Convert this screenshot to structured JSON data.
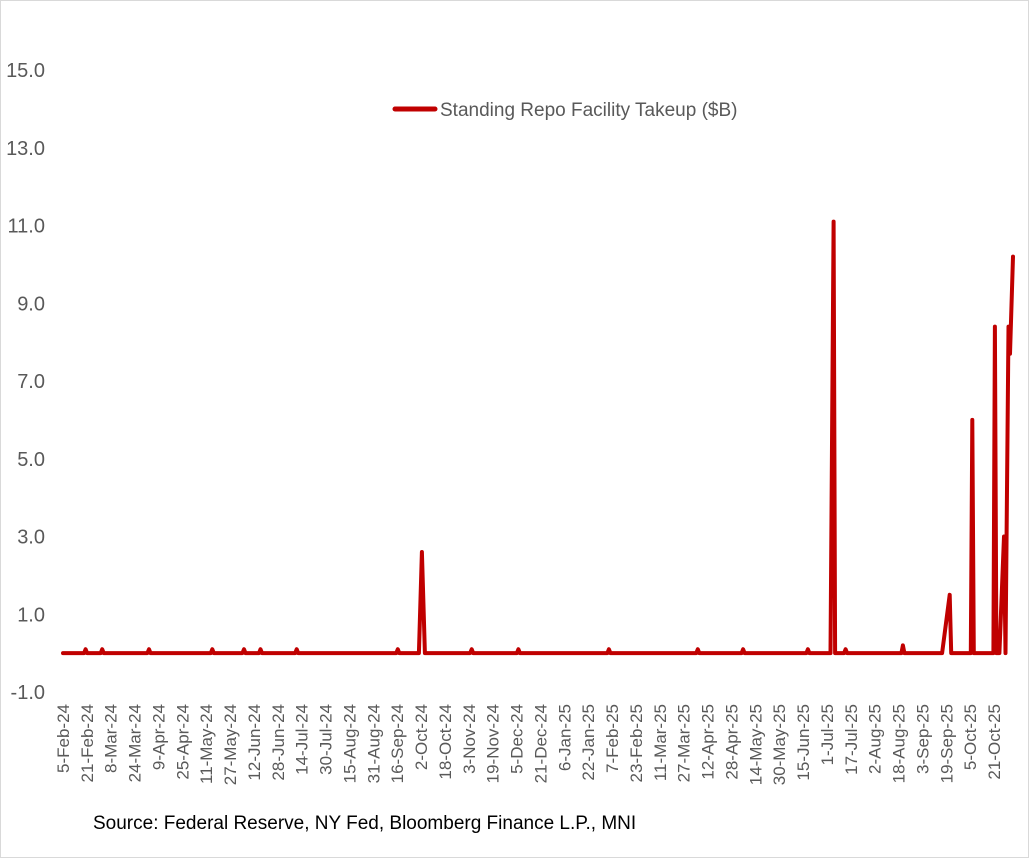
{
  "chart_data": {
    "type": "line",
    "title": "",
    "xlabel": "",
    "ylabel": "",
    "ylim": [
      -1.0,
      17.0
    ],
    "y_ticks": [
      "-1.0",
      "1.0",
      "3.0",
      "5.0",
      "7.0",
      "9.0",
      "11.0",
      "13.0",
      "15.0"
    ],
    "y_tick_values": [
      -1,
      1,
      3,
      5,
      7,
      9,
      11,
      13,
      15
    ],
    "x_tick_labels": [
      "5-Feb-24",
      "21-Feb-24",
      "8-Mar-24",
      "24-Mar-24",
      "9-Apr-24",
      "25-Apr-24",
      "11-May-24",
      "27-May-24",
      "12-Jun-24",
      "28-Jun-24",
      "14-Jul-24",
      "30-Jul-24",
      "15-Aug-24",
      "31-Aug-24",
      "16-Sep-24",
      "2-Oct-24",
      "18-Oct-24",
      "3-Nov-24",
      "19-Nov-24",
      "5-Dec-24",
      "21-Dec-24",
      "6-Jan-25",
      "22-Jan-25",
      "7-Feb-25",
      "23-Feb-25",
      "11-Mar-25",
      "27-Mar-25",
      "12-Apr-25",
      "28-Apr-25",
      "14-May-25",
      "30-May-25",
      "15-Jun-25",
      "1-Jul-25",
      "17-Jul-25",
      "2-Aug-25",
      "18-Aug-25",
      "3-Sep-25",
      "19-Sep-25",
      "5-Oct-25",
      "21-Oct-25"
    ],
    "grid": false,
    "legend_position": "top-center",
    "series": [
      {
        "name": "Standing Repo Facility Takeup ($B)",
        "color": "#c00000",
        "points": [
          [
            "2024-02-05",
            0.0
          ],
          [
            "2024-02-19",
            0.0
          ],
          [
            "2024-02-20",
            0.1
          ],
          [
            "2024-02-21",
            0.0
          ],
          [
            "2024-03-01",
            0.0
          ],
          [
            "2024-03-02",
            0.1
          ],
          [
            "2024-03-03",
            0.0
          ],
          [
            "2024-04-01",
            0.0
          ],
          [
            "2024-04-02",
            0.1
          ],
          [
            "2024-04-03",
            0.0
          ],
          [
            "2024-05-13",
            0.0
          ],
          [
            "2024-05-14",
            0.1
          ],
          [
            "2024-05-15",
            0.0
          ],
          [
            "2024-06-03",
            0.0
          ],
          [
            "2024-06-04",
            0.1
          ],
          [
            "2024-06-05",
            0.0
          ],
          [
            "2024-06-14",
            0.0
          ],
          [
            "2024-06-15",
            0.1
          ],
          [
            "2024-06-16",
            0.0
          ],
          [
            "2024-07-08",
            0.0
          ],
          [
            "2024-07-09",
            0.1
          ],
          [
            "2024-07-10",
            0.0
          ],
          [
            "2024-09-13",
            0.0
          ],
          [
            "2024-09-14",
            0.1
          ],
          [
            "2024-09-15",
            0.0
          ],
          [
            "2024-09-28",
            0.0
          ],
          [
            "2024-09-30",
            2.6
          ],
          [
            "2024-10-02",
            0.0
          ],
          [
            "2024-11-01",
            0.0
          ],
          [
            "2024-11-02",
            0.1
          ],
          [
            "2024-11-03",
            0.0
          ],
          [
            "2024-12-02",
            0.0
          ],
          [
            "2024-12-03",
            0.1
          ],
          [
            "2024-12-04",
            0.0
          ],
          [
            "2025-01-31",
            0.0
          ],
          [
            "2025-02-01",
            0.1
          ],
          [
            "2025-02-02",
            0.0
          ],
          [
            "2025-03-31",
            0.0
          ],
          [
            "2025-04-01",
            0.1
          ],
          [
            "2025-04-02",
            0.0
          ],
          [
            "2025-04-30",
            0.0
          ],
          [
            "2025-05-01",
            0.1
          ],
          [
            "2025-05-02",
            0.0
          ],
          [
            "2025-06-12",
            0.0
          ],
          [
            "2025-06-13",
            0.1
          ],
          [
            "2025-06-14",
            0.0
          ],
          [
            "2025-06-28",
            0.0
          ],
          [
            "2025-06-30",
            11.1
          ],
          [
            "2025-07-01",
            0.0
          ],
          [
            "2025-07-07",
            0.0
          ],
          [
            "2025-07-08",
            0.1
          ],
          [
            "2025-07-09",
            0.0
          ],
          [
            "2025-08-14",
            0.0
          ],
          [
            "2025-08-15",
            0.2
          ],
          [
            "2025-08-16",
            0.0
          ],
          [
            "2025-09-10",
            0.0
          ],
          [
            "2025-09-15",
            1.5
          ],
          [
            "2025-09-16",
            0.0
          ],
          [
            "2025-09-29",
            0.0
          ],
          [
            "2025-09-30",
            6.0
          ],
          [
            "2025-10-01",
            0.0
          ],
          [
            "2025-10-14",
            0.0
          ],
          [
            "2025-10-15",
            8.4
          ],
          [
            "2025-10-16",
            0.0
          ],
          [
            "2025-10-18",
            0.0
          ],
          [
            "2025-10-21",
            3.0
          ],
          [
            "2025-10-22",
            0.0
          ],
          [
            "2025-10-24",
            8.4
          ],
          [
            "2025-10-25",
            7.7
          ],
          [
            "2025-10-27",
            10.2
          ]
        ]
      }
    ]
  },
  "source_note": "Source: Federal Reserve, NY Fed, Bloomberg Finance L.P., MNI"
}
